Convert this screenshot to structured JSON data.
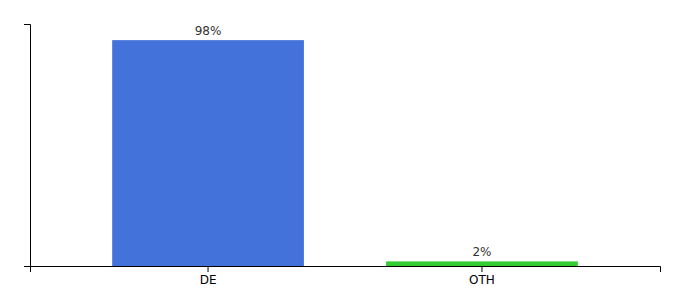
{
  "chart_data": {
    "type": "bar",
    "categories": [
      "DE",
      "OTH"
    ],
    "values": [
      98,
      2
    ],
    "value_labels": [
      "98%",
      "2%"
    ],
    "colors": [
      "#4472db",
      "#33cc33"
    ],
    "ylim": [
      0,
      105
    ],
    "yticks": [],
    "data_labels": true,
    "tick_labels": "x"
  }
}
